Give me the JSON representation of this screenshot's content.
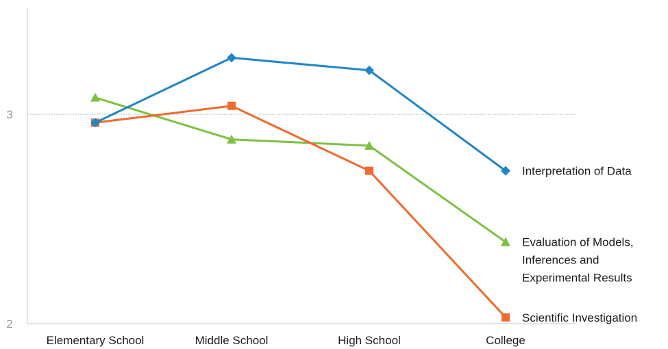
{
  "chart_data": {
    "type": "line",
    "categories": [
      "Elementary School",
      "Middle School",
      "High School",
      "College"
    ],
    "ylim": [
      2,
      3
    ],
    "y_ticks": [
      2,
      3
    ],
    "gridlines": [
      3
    ],
    "legend_placement": "right, beside last point",
    "series": [
      {
        "name": "Interpretation of Data",
        "legend_lines": [
          "Interpretation of Data"
        ],
        "values": [
          2.96,
          3.27,
          3.21,
          2.73
        ],
        "color": "#1f86c8",
        "marker": "diamond"
      },
      {
        "name": "Evaluation of Models, Inferences and Experimental Results",
        "legend_lines": [
          "Evaluation of Models,",
          "Inferences and",
          "Experimental Results"
        ],
        "values": [
          3.08,
          2.88,
          2.85,
          2.39
        ],
        "color": "#7dc142",
        "marker": "triangle"
      },
      {
        "name": "Scientific Investigation",
        "legend_lines": [
          "Scientific Investigation"
        ],
        "values": [
          2.96,
          3.04,
          2.73,
          2.03
        ],
        "color": "#ef6a2e",
        "marker": "square"
      }
    ]
  }
}
